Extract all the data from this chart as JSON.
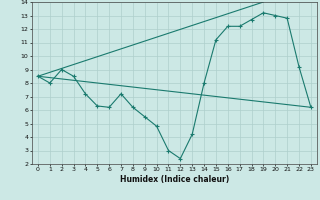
{
  "xlabel": "Humidex (Indice chaleur)",
  "xlim": [
    -0.5,
    23.5
  ],
  "ylim": [
    2,
    14
  ],
  "xticks": [
    0,
    1,
    2,
    3,
    4,
    5,
    6,
    7,
    8,
    9,
    10,
    11,
    12,
    13,
    14,
    15,
    16,
    17,
    18,
    19,
    20,
    21,
    22,
    23
  ],
  "yticks": [
    2,
    3,
    4,
    5,
    6,
    7,
    8,
    9,
    10,
    11,
    12,
    13,
    14
  ],
  "bg_color": "#cce8e5",
  "line_color": "#1a7a6e",
  "grid_color": "#aecfcc",
  "line1_x": [
    0,
    1,
    2,
    3,
    4,
    5,
    6,
    7,
    8,
    9,
    10,
    11,
    12,
    13,
    14,
    15,
    16,
    17,
    18,
    19,
    20,
    21,
    22,
    23
  ],
  "line1_y": [
    8.5,
    8.0,
    9.0,
    8.5,
    7.2,
    6.3,
    6.2,
    7.2,
    6.2,
    5.5,
    4.8,
    3.0,
    2.4,
    4.2,
    8.0,
    11.2,
    12.2,
    12.2,
    12.7,
    13.2,
    13.0,
    12.8,
    9.2,
    6.2
  ],
  "line2_x": [
    0,
    23
  ],
  "line2_y": [
    8.5,
    6.2
  ],
  "line3_x": [
    0,
    19
  ],
  "line3_y": [
    8.5,
    14.0
  ]
}
